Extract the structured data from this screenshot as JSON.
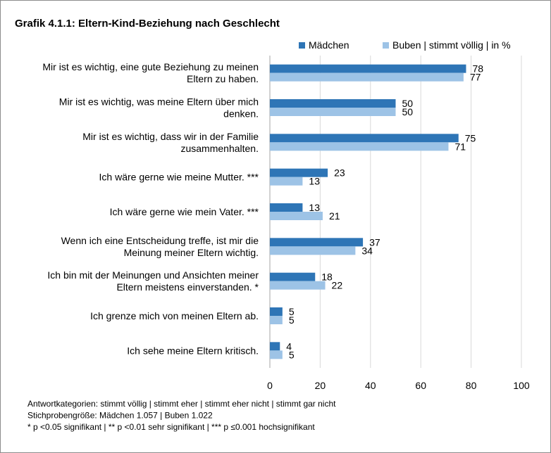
{
  "chart_data": {
    "type": "bar",
    "orientation": "horizontal",
    "title": "Grafik 4.1.1: Eltern-Kind-Beziehung nach Geschlecht",
    "categories": [
      [
        "Mir ist es wichtig, eine gute Beziehung zu meinen",
        "Eltern zu haben."
      ],
      [
        "Mir ist es wichtig, was meine Eltern über mich",
        "denken."
      ],
      [
        "Mir ist es wichtig, dass wir in der Familie",
        "zusammenhalten."
      ],
      [
        "Ich wäre gerne wie meine Mutter. ***"
      ],
      [
        "Ich wäre gerne wie mein Vater. ***"
      ],
      [
        "Wenn ich eine Entscheidung treffe, ist mir die",
        "Meinung meiner Eltern wichtig."
      ],
      [
        "Ich bin mit der Meinungen und Ansichten meiner",
        "Eltern meistens einverstanden. *"
      ],
      [
        "Ich grenze mich von meinen Eltern ab."
      ],
      [
        "Ich sehe meine Eltern kritisch."
      ]
    ],
    "series": [
      {
        "name": "Mädchen",
        "color": "#2e75b6",
        "values": [
          78,
          50,
          75,
          23,
          13,
          37,
          18,
          5,
          4
        ]
      },
      {
        "name": "Buben | stimmt völlig | in %",
        "color": "#9dc3e6",
        "values": [
          77,
          50,
          71,
          13,
          21,
          34,
          22,
          5,
          5
        ]
      }
    ],
    "xlim": [
      0,
      100
    ],
    "xticks": [
      0,
      20,
      40,
      60,
      80,
      100
    ],
    "grid": true,
    "legend_position": "top-right",
    "notes": [
      "Antwortkategorien: stimmt völlig | stimmt eher | stimmt eher nicht | stimmt gar nicht",
      "Stichprobengröße: Mädchen 1.057 | Buben 1.022",
      "* p <0.05 signifikant  | ** p <0.01 sehr signifikant | *** p ≤0.001 hochsignifikant"
    ]
  }
}
